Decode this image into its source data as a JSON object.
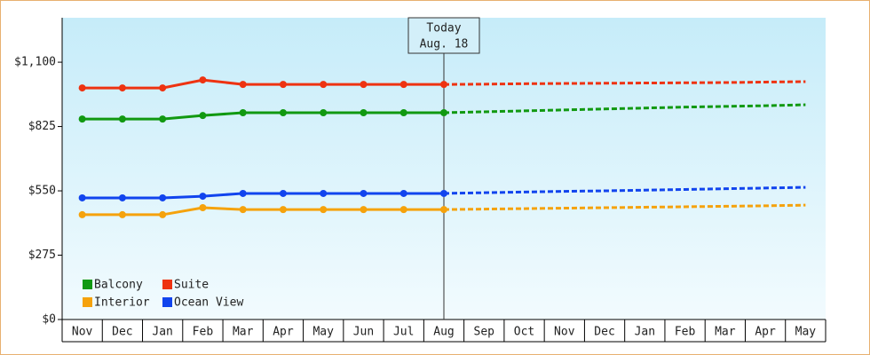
{
  "chart_data": {
    "type": "line",
    "categories": [
      "Nov",
      "Dec",
      "Jan",
      "Feb",
      "Mar",
      "Apr",
      "May",
      "Jun",
      "Jul",
      "Aug",
      "Sep",
      "Oct",
      "Nov",
      "Dec",
      "Jan",
      "Feb",
      "Mar",
      "Apr",
      "May"
    ],
    "series": [
      {
        "name": "Balcony",
        "color": "#119911",
        "values": [
          857,
          857,
          857,
          872,
          884,
          884,
          884,
          884,
          884,
          884,
          null,
          null,
          null,
          null,
          null,
          null,
          null,
          null,
          null
        ],
        "forecast": [
          null,
          null,
          null,
          null,
          null,
          null,
          null,
          null,
          null,
          884,
          888,
          892,
          896,
          900,
          904,
          908,
          911,
          914,
          918
        ]
      },
      {
        "name": "Suite",
        "color": "#ee3311",
        "values": [
          990,
          990,
          990,
          1024,
          1005,
          1005,
          1005,
          1005,
          1005,
          1005,
          null,
          null,
          null,
          null,
          null,
          null,
          null,
          null,
          null
        ],
        "forecast": [
          null,
          null,
          null,
          null,
          null,
          null,
          null,
          null,
          null,
          1005,
          1006,
          1008,
          1009,
          1010,
          1011,
          1012,
          1013,
          1015,
          1017
        ]
      },
      {
        "name": "Interior",
        "color": "#f5a20c",
        "values": [
          448,
          448,
          448,
          478,
          470,
          470,
          470,
          470,
          470,
          470,
          null,
          null,
          null,
          null,
          null,
          null,
          null,
          null,
          null
        ],
        "forecast": [
          null,
          null,
          null,
          null,
          null,
          null,
          null,
          null,
          null,
          470,
          472,
          474,
          476,
          478,
          480,
          482,
          484,
          486,
          489
        ]
      },
      {
        "name": "Ocean View",
        "color": "#1144ee",
        "values": [
          520,
          520,
          520,
          527,
          539,
          539,
          539,
          539,
          539,
          539,
          null,
          null,
          null,
          null,
          null,
          null,
          null,
          null,
          null
        ],
        "forecast": [
          null,
          null,
          null,
          null,
          null,
          null,
          null,
          null,
          null,
          539,
          542,
          545,
          548,
          550,
          553,
          556,
          559,
          562,
          565
        ]
      }
    ],
    "ylim": [
      0,
      1290
    ],
    "yticks": [
      {
        "value": 0,
        "label": "$0"
      },
      {
        "value": 275,
        "label": "$275"
      },
      {
        "value": 550,
        "label": "$550"
      },
      {
        "value": 825,
        "label": "$825"
      },
      {
        "value": 1100,
        "label": "$1,100"
      }
    ],
    "annotation": [
      "Today",
      "Aug. 18"
    ],
    "legend": "lower-left"
  }
}
